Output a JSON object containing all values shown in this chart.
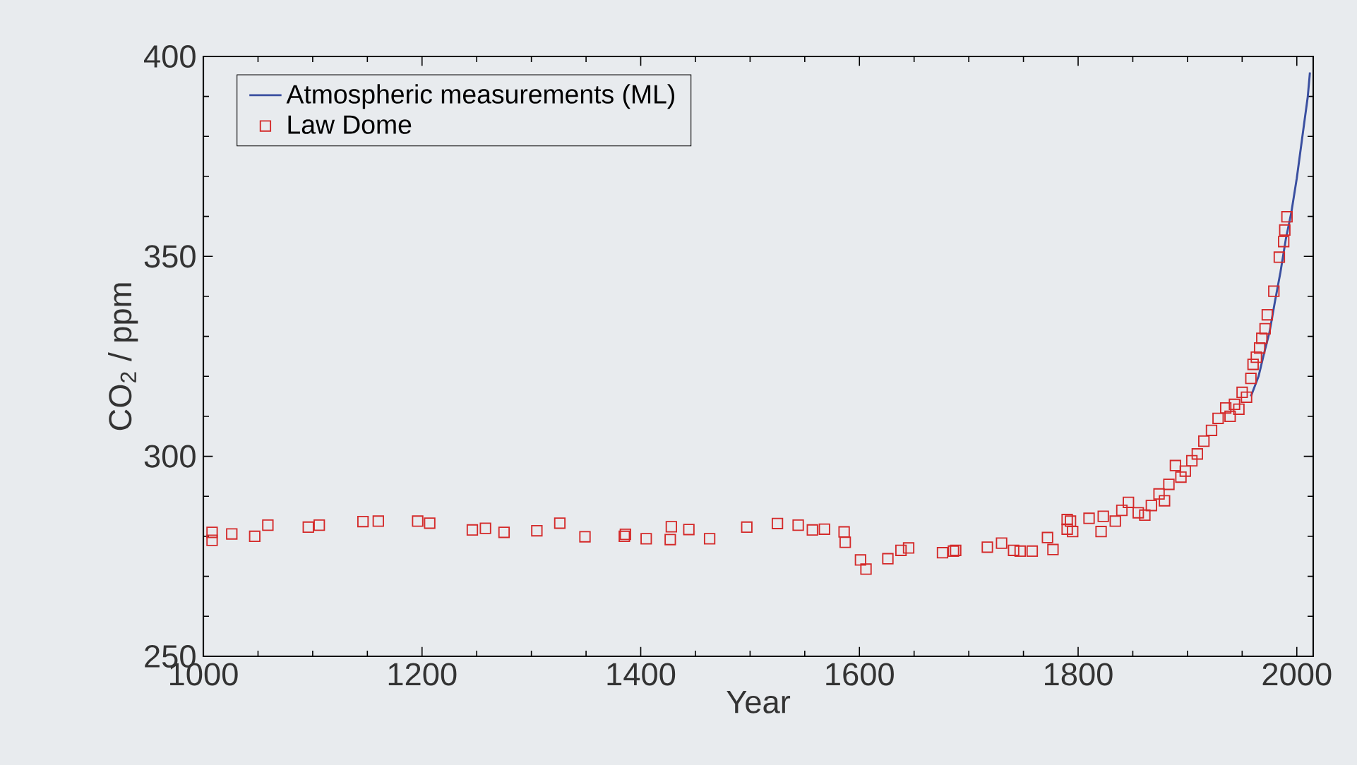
{
  "chart_data": {
    "type": "scatter",
    "xlabel": "Year",
    "ylabel": "CO$_{2}$ / ppm",
    "xlim": [
      1000,
      2015
    ],
    "ylim": [
      250,
      400
    ],
    "xticks": [
      1000,
      1200,
      1400,
      1600,
      1800,
      2000
    ],
    "yticks": [
      250,
      300,
      350,
      400
    ],
    "grid": false,
    "legend": "top left",
    "series": [
      {
        "name": "Atmospheric measurements (ML)",
        "type": "line",
        "color": "#3a4fa0",
        "marker": "none",
        "line_style": "solid",
        "x": [
          1958,
          1965,
          1970,
          1975,
          1980,
          1985,
          1990,
          1995,
          2000,
          2005,
          2010,
          2012
        ],
        "values": [
          315,
          320,
          325.7,
          331,
          338.7,
          346,
          354.4,
          361,
          369.6,
          379.8,
          389.9,
          396
        ]
      },
      {
        "name": "Law Dome",
        "color": "#d42a2a",
        "marker": "square",
        "x": [
          1008,
          1008,
          1026,
          1047,
          1059,
          1096,
          1106,
          1146,
          1160,
          1196,
          1207,
          1246,
          1258,
          1275,
          1305,
          1326,
          1349,
          1385,
          1386,
          1405,
          1428,
          1427,
          1444,
          1463,
          1497,
          1525,
          1544,
          1557,
          1568,
          1586,
          1587,
          1601,
          1606,
          1626,
          1638,
          1645,
          1676,
          1686,
          1688,
          1717,
          1730,
          1741,
          1747,
          1758,
          1772,
          1777,
          1790,
          1790,
          1793,
          1795,
          1810,
          1821,
          1823,
          1834,
          1840,
          1846,
          1855,
          1861,
          1867,
          1874,
          1879,
          1883,
          1889,
          1894,
          1898,
          1904,
          1909,
          1915,
          1922,
          1928,
          1935,
          1939,
          1943,
          1947,
          1950,
          1954,
          1958,
          1960,
          1963,
          1966,
          1968,
          1971,
          1973,
          1979,
          1984,
          1988,
          1989,
          1991
        ],
        "values": [
          281,
          279,
          280.6,
          280,
          282.8,
          282.3,
          282.8,
          283.7,
          283.8,
          283.8,
          283.3,
          281.6,
          282,
          281,
          281.4,
          283.3,
          279.9,
          280,
          280.5,
          279.4,
          282.4,
          279.2,
          281.7,
          279.4,
          282.3,
          283.2,
          282.8,
          281.6,
          281.8,
          281.1,
          278.5,
          274.1,
          271.8,
          274.4,
          276.5,
          277.1,
          275.9,
          276.3,
          276.5,
          277.3,
          278.3,
          276.5,
          276.3,
          276.3,
          279.7,
          276.7,
          284.2,
          281.8,
          283.8,
          281.2,
          284.5,
          281.2,
          285,
          283.8,
          286.5,
          288.5,
          285.9,
          285.3,
          287.7,
          290.6,
          288.9,
          293,
          297.7,
          294.8,
          296.3,
          298.9,
          300.6,
          303.8,
          306.5,
          309.5,
          312.1,
          310,
          313,
          311.8,
          316,
          314.8,
          319.5,
          323,
          324.8,
          327.1,
          329.5,
          331.9,
          335.4,
          341.3,
          349.8,
          353.7,
          356.6,
          359.9
        ]
      }
    ]
  }
}
